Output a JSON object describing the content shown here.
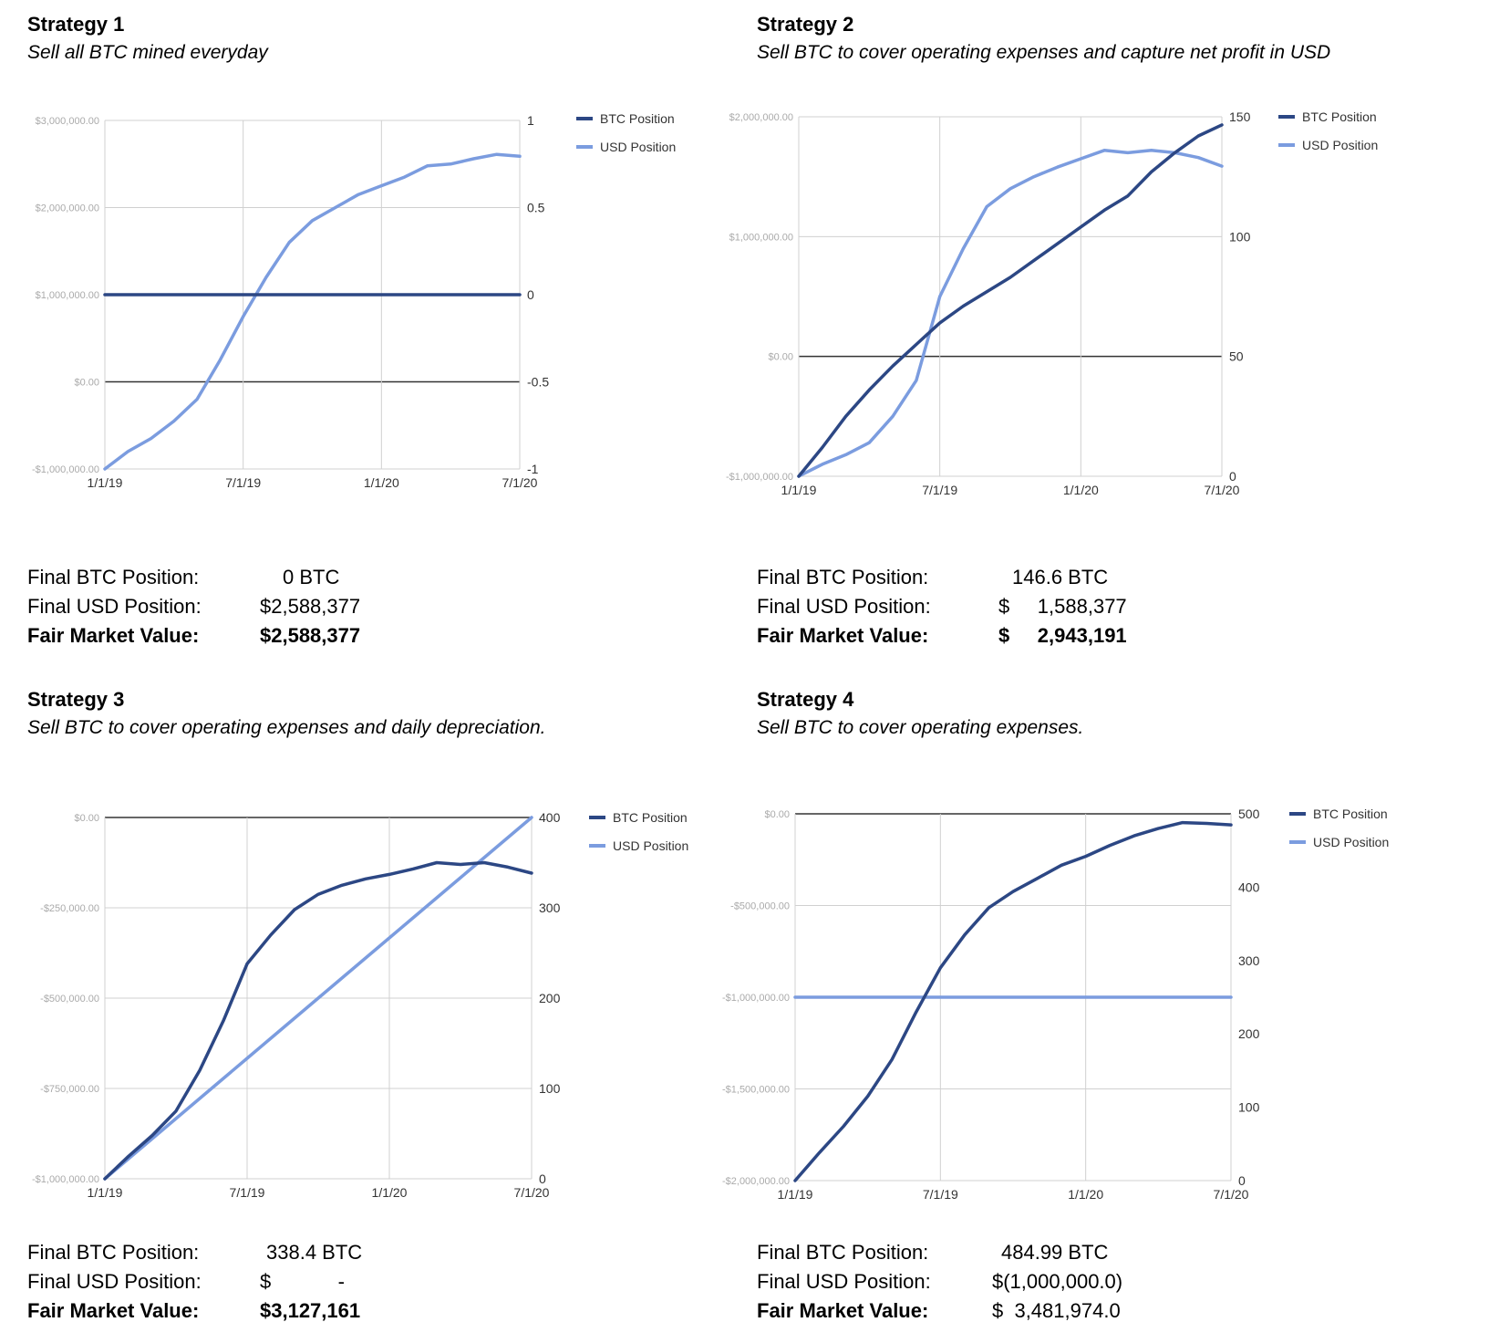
{
  "colors": {
    "btc": "#2c4784",
    "usd": "#7b9cdf",
    "grid": "#d0d0d0",
    "zero": "#333333",
    "axis_text": "#aaaaaa",
    "label_text": "#333333"
  },
  "strategies": [
    {
      "title": "Strategy 1",
      "subtitle": "Sell all BTC mined everyday",
      "stats": {
        "btc_label": "Final BTC Position:",
        "btc_value": "0 BTC",
        "usd_label": "Final USD Position:",
        "usd_value": "$2,588,377",
        "fmv_label": "Fair Market Value:",
        "fmv_value": "$2,588,377"
      }
    },
    {
      "title": "Strategy 2",
      "subtitle": "Sell BTC to cover operating expenses and capture net profit in USD",
      "stats": {
        "btc_label": "Final BTC Position:",
        "btc_value": "146.6 BTC",
        "usd_label": "Final USD Position:",
        "usd_value": "$     1,588,377",
        "fmv_label": "Fair Market Value:",
        "fmv_value": "$     2,943,191"
      }
    },
    {
      "title": "Strategy 3",
      "subtitle": "Sell BTC to cover operating expenses and daily depreciation.",
      "stats": {
        "btc_label": "Final BTC Position:",
        "btc_value": "338.4 BTC",
        "usd_label": "Final USD Position:",
        "usd_value": "$            -",
        "fmv_label": "Fair Market Value:",
        "fmv_value": "$3,127,161"
      }
    },
    {
      "title": "Strategy 4",
      "subtitle": "Sell BTC to cover operating expenses.",
      "stats": {
        "btc_label": "Final BTC Position:",
        "btc_value": "484.99 BTC",
        "usd_label": "Final USD Position:",
        "usd_value": "$(1,000,000.0)",
        "fmv_label": "Fair Market Value:",
        "fmv_value": "$  3,481,974.0"
      }
    }
  ],
  "chart_data": [
    {
      "type": "line",
      "title": "Strategy 1",
      "x": [
        0,
        1,
        2,
        3,
        4,
        5,
        6,
        7,
        8,
        9,
        10,
        11,
        12,
        13,
        14,
        15,
        16,
        17,
        18
      ],
      "x_ticks": [
        {
          "pos": 0,
          "label": "1/1/19"
        },
        {
          "pos": 6,
          "label": "7/1/19"
        },
        {
          "pos": 12,
          "label": "1/1/20"
        },
        {
          "pos": 18,
          "label": "7/1/20"
        }
      ],
      "left_axis": {
        "min": -1000000,
        "max": 3000000,
        "ticks": [
          -1000000,
          0,
          1000000,
          2000000,
          3000000
        ],
        "tick_labels": [
          "-$1,000,000.00",
          "$0.00",
          "$1,000,000.00",
          "$2,000,000.00",
          "$3,000,000.00"
        ]
      },
      "right_axis": {
        "min": -1,
        "max": 1,
        "ticks": [
          -1,
          -0.5,
          0,
          0.5,
          1
        ],
        "tick_labels": [
          "-1",
          "-0.5",
          "0",
          "0.5",
          "1"
        ]
      },
      "series": [
        {
          "name": "BTC Position",
          "axis": "right",
          "color": "btc",
          "values": [
            0,
            0,
            0,
            0,
            0,
            0,
            0,
            0,
            0,
            0,
            0,
            0,
            0,
            0,
            0,
            0,
            0,
            0,
            0
          ]
        },
        {
          "name": "USD Position",
          "axis": "left",
          "color": "usd",
          "values": [
            -1000000,
            -800000,
            -650000,
            -450000,
            -200000,
            250000,
            750000,
            1200000,
            1600000,
            1850000,
            2000000,
            2150000,
            2250000,
            2350000,
            2480000,
            2500000,
            2560000,
            2610000,
            2588377
          ]
        }
      ],
      "legend": [
        "BTC Position",
        "USD Position"
      ]
    },
    {
      "type": "line",
      "title": "Strategy 2",
      "x": [
        0,
        1,
        2,
        3,
        4,
        5,
        6,
        7,
        8,
        9,
        10,
        11,
        12,
        13,
        14,
        15,
        16,
        17,
        18
      ],
      "x_ticks": [
        {
          "pos": 0,
          "label": "1/1/19"
        },
        {
          "pos": 6,
          "label": "7/1/19"
        },
        {
          "pos": 12,
          "label": "1/1/20"
        },
        {
          "pos": 18,
          "label": "7/1/20"
        }
      ],
      "left_axis": {
        "min": -1000000,
        "max": 2000000,
        "ticks": [
          -1000000,
          0,
          1000000,
          2000000
        ],
        "tick_labels": [
          "-$1,000,000.00",
          "$0.00",
          "$1,000,000.00",
          "$2,000,000.00"
        ]
      },
      "right_axis": {
        "min": 0,
        "max": 150,
        "ticks": [
          0,
          50,
          100,
          150
        ],
        "tick_labels": [
          "0",
          "50",
          "100",
          "150"
        ]
      },
      "series": [
        {
          "name": "BTC Position",
          "axis": "right",
          "color": "btc",
          "values": [
            0,
            12,
            25,
            36,
            46,
            55,
            64,
            71,
            77,
            83,
            90,
            97,
            104,
            111,
            117,
            127,
            135,
            142,
            146.6
          ]
        },
        {
          "name": "USD Position",
          "axis": "left",
          "color": "usd",
          "values": [
            -1000000,
            -900000,
            -820000,
            -720000,
            -500000,
            -200000,
            500000,
            900000,
            1250000,
            1400000,
            1500000,
            1580000,
            1650000,
            1720000,
            1700000,
            1720000,
            1700000,
            1660000,
            1588377
          ]
        }
      ],
      "legend": [
        "BTC Position",
        "USD Position"
      ]
    },
    {
      "type": "line",
      "title": "Strategy 3",
      "x": [
        0,
        1,
        2,
        3,
        4,
        5,
        6,
        7,
        8,
        9,
        10,
        11,
        12,
        13,
        14,
        15,
        16,
        17,
        18
      ],
      "x_ticks": [
        {
          "pos": 0,
          "label": "1/1/19"
        },
        {
          "pos": 6,
          "label": "7/1/19"
        },
        {
          "pos": 12,
          "label": "1/1/20"
        },
        {
          "pos": 18,
          "label": "7/1/20"
        }
      ],
      "left_axis": {
        "min": -1000000,
        "max": 0,
        "ticks": [
          -1000000,
          -750000,
          -500000,
          -250000,
          0
        ],
        "tick_labels": [
          "-$1,000,000.00",
          "-$750,000.00",
          "-$500,000.00",
          "-$250,000.00",
          "$0.00"
        ]
      },
      "right_axis": {
        "min": 0,
        "max": 400,
        "ticks": [
          0,
          100,
          200,
          300,
          400
        ],
        "tick_labels": [
          "0",
          "100",
          "200",
          "300",
          "400"
        ]
      },
      "series": [
        {
          "name": "BTC Position",
          "axis": "right",
          "color": "btc",
          "values": [
            0,
            25,
            48,
            75,
            120,
            175,
            238,
            270,
            298,
            315,
            325,
            332,
            337,
            343,
            350,
            348,
            350,
            345,
            338.4
          ]
        },
        {
          "name": "USD Position",
          "axis": "left",
          "color": "usd",
          "values": [
            -1000000,
            -944444,
            -888889,
            -833333,
            -777778,
            -722222,
            -666667,
            -611111,
            -555556,
            -500000,
            -444444,
            -388889,
            -333333,
            -277778,
            -222222,
            -166667,
            -111111,
            -55556,
            0
          ]
        }
      ],
      "legend": [
        "BTC Position",
        "USD Position"
      ]
    },
    {
      "type": "line",
      "title": "Strategy 4",
      "x": [
        0,
        1,
        2,
        3,
        4,
        5,
        6,
        7,
        8,
        9,
        10,
        11,
        12,
        13,
        14,
        15,
        16,
        17,
        18
      ],
      "x_ticks": [
        {
          "pos": 0,
          "label": "1/1/19"
        },
        {
          "pos": 6,
          "label": "7/1/19"
        },
        {
          "pos": 12,
          "label": "1/1/20"
        },
        {
          "pos": 18,
          "label": "7/1/20"
        }
      ],
      "left_axis": {
        "min": -2000000,
        "max": 0,
        "ticks": [
          -2000000,
          -1500000,
          -1000000,
          -500000,
          0
        ],
        "tick_labels": [
          "-$2,000,000.00",
          "-$1,500,000.00",
          "-$1,000,000.00",
          "-$500,000.00",
          "$0.00"
        ]
      },
      "right_axis": {
        "min": 0,
        "max": 500,
        "ticks": [
          0,
          100,
          200,
          300,
          400,
          500
        ],
        "tick_labels": [
          "0",
          "100",
          "200",
          "300",
          "400",
          "500"
        ]
      },
      "series": [
        {
          "name": "BTC Position",
          "axis": "right",
          "color": "btc",
          "values": [
            0,
            38,
            74,
            115,
            165,
            230,
            290,
            335,
            372,
            394,
            412,
            430,
            442,
            457,
            470,
            480,
            488,
            487,
            484.99
          ]
        },
        {
          "name": "USD Position",
          "axis": "left",
          "color": "usd",
          "values": [
            -1000000,
            -1000000,
            -1000000,
            -1000000,
            -1000000,
            -1000000,
            -1000000,
            -1000000,
            -1000000,
            -1000000,
            -1000000,
            -1000000,
            -1000000,
            -1000000,
            -1000000,
            -1000000,
            -1000000,
            -1000000,
            -1000000
          ]
        }
      ],
      "legend": [
        "BTC Position",
        "USD Position"
      ]
    }
  ]
}
